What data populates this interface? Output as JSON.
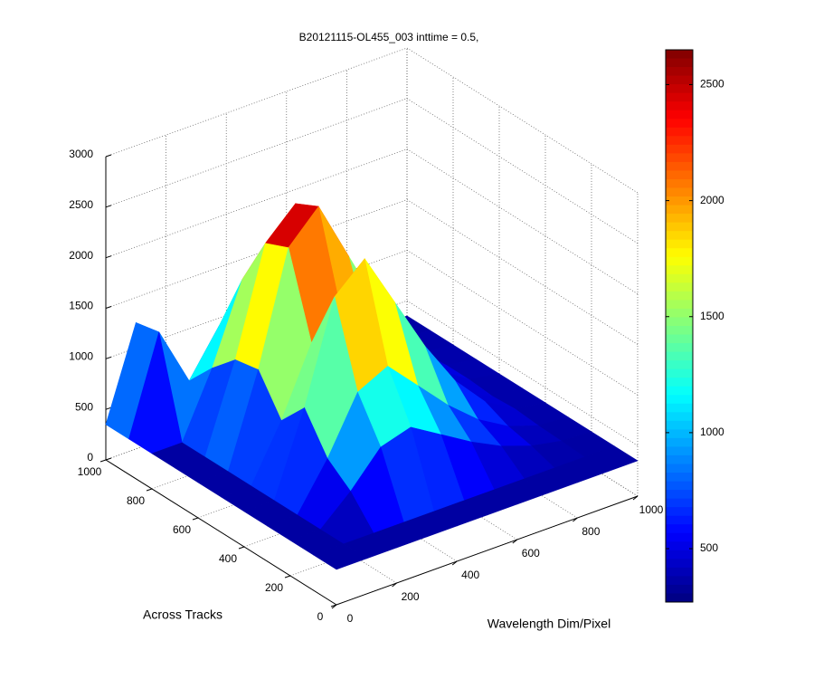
{
  "chart_data": {
    "type": "surface",
    "title": "B20121115-OL455_003 inttime = 0.5,",
    "xlabel": "Wavelength Dim/Pixel",
    "ylabel": "Across Tracks",
    "x": [
      0,
      100,
      200,
      300,
      400,
      500,
      600,
      700,
      800,
      900,
      1000
    ],
    "y": [
      0,
      100,
      200,
      300,
      400,
      500,
      600,
      700,
      800,
      900,
      1000
    ],
    "z": [
      [
        350,
        350,
        350,
        350,
        350,
        350,
        350,
        350,
        350,
        350,
        350
      ],
      [
        350,
        350,
        350,
        350,
        350,
        350,
        350,
        350,
        350,
        350,
        350
      ],
      [
        350,
        350,
        620,
        950,
        1040,
        860,
        680,
        530,
        425,
        365,
        350
      ],
      [
        350,
        350,
        800,
        1350,
        1500,
        1200,
        900,
        650,
        475,
        375,
        350
      ],
      [
        350,
        350,
        1160,
        2150,
        2420,
        1880,
        1340,
        890,
        575,
        395,
        350
      ],
      [
        350,
        350,
        890,
        1550,
        1730,
        1370,
        1010,
        710,
        500,
        380,
        350
      ],
      [
        350,
        350,
        1250,
        2350,
        2650,
        2050,
        1450,
        950,
        600,
        400,
        350
      ],
      [
        350,
        350,
        1205,
        2250,
        2535,
        1965,
        1395,
        920,
        590,
        400,
        350
      ],
      [
        350,
        350,
        980,
        1750,
        1960,
        1540,
        1120,
        770,
        525,
        385,
        350
      ],
      [
        350,
        1300,
        710,
        1150,
        1270,
        1030,
        790,
        590,
        450,
        370,
        350
      ],
      [
        350,
        1250,
        350,
        350,
        350,
        350,
        350,
        350,
        350,
        350,
        350
      ]
    ],
    "xlim": [
      0,
      1000
    ],
    "xticks": [
      0,
      200,
      400,
      600,
      800,
      1000
    ],
    "ylim": [
      0,
      1000
    ],
    "yticks": [
      0,
      200,
      400,
      600,
      800,
      1000
    ],
    "zlim": [
      0,
      3000
    ],
    "zticks": [
      0,
      500,
      1000,
      1500,
      2000,
      2500,
      3000
    ],
    "clim": [
      270,
      2650
    ],
    "cticks": [
      500,
      1000,
      1500,
      2000,
      2500
    ],
    "colormap": "jet",
    "grid": true
  }
}
